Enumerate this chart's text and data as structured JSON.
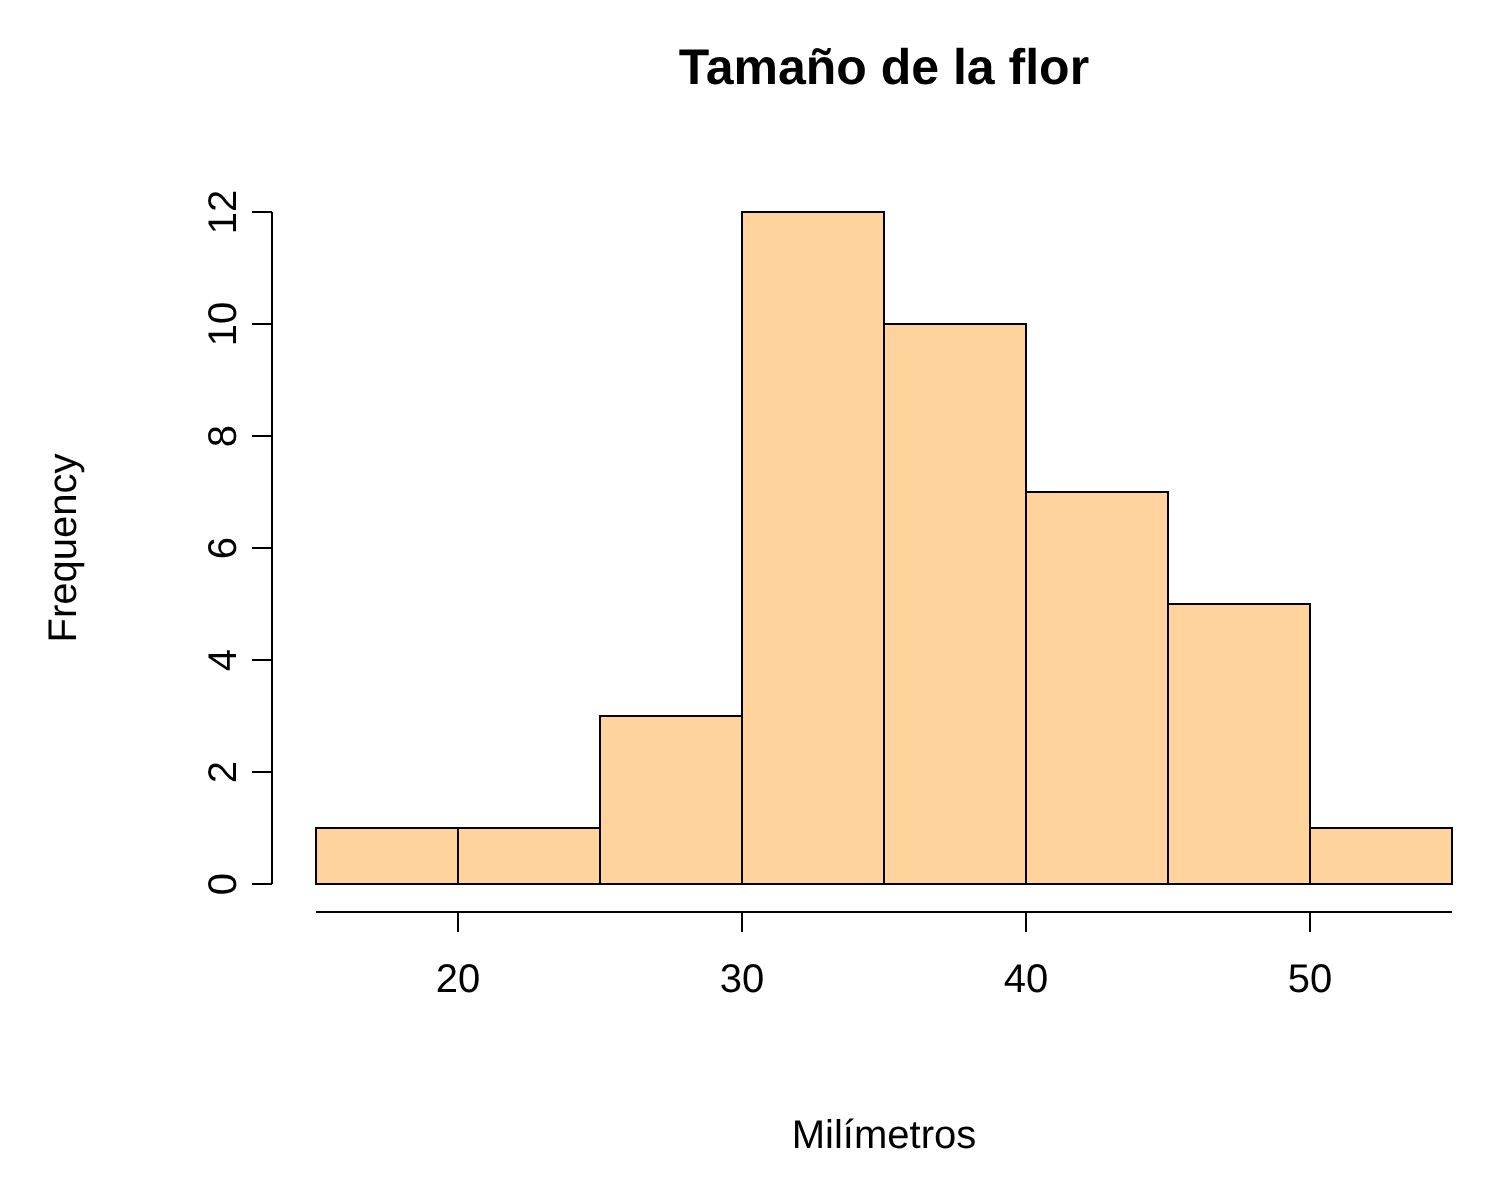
{
  "chart_data": {
    "type": "histogram",
    "title": "Tamaño de la flor",
    "xlabel": "Milímetros",
    "ylabel": "Frequency",
    "bins": [
      15,
      20,
      25,
      30,
      35,
      40,
      45,
      50,
      55
    ],
    "values": [
      1,
      1,
      3,
      12,
      10,
      7,
      5,
      1
    ],
    "color": "#ffd39b",
    "xlim": [
      15,
      55
    ],
    "xticks": [
      20,
      30,
      40,
      50
    ],
    "ylim": [
      0,
      12
    ],
    "yticks": [
      0,
      2,
      4,
      6,
      8,
      10,
      12
    ],
    "grid": false
  }
}
